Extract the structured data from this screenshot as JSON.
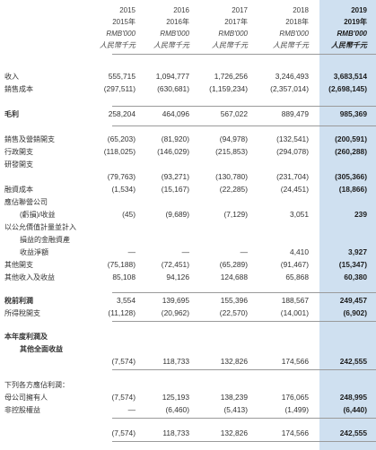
{
  "header": {
    "years": [
      "2015",
      "2016",
      "2017",
      "2018",
      "2019"
    ],
    "year_labels": [
      "2015年",
      "2016年",
      "2017年",
      "2018年",
      "2019年"
    ],
    "units": [
      "RMB'000",
      "RMB'000",
      "RMB'000",
      "RMB'000",
      "RMB'000"
    ],
    "units_zh": [
      "人民幣千元",
      "人民幣千元",
      "人民幣千元",
      "人民幣千元",
      "人民幣千元"
    ]
  },
  "rows": [
    {
      "label": "收入",
      "values": [
        "555,715",
        "1,094,777",
        "1,726,256",
        "3,246,493",
        "3,683,514"
      ]
    },
    {
      "label": "銷售成本",
      "values": [
        "(297,511)",
        "(630,681)",
        "(1,159,234)",
        "(2,357,014)",
        "(2,698,145)"
      ]
    },
    {
      "label": "毛利",
      "bold": true,
      "values": [
        "258,204",
        "464,096",
        "567,022",
        "889,479",
        "985,369"
      ]
    },
    {
      "label": "銷售及營銷開支",
      "values": [
        "(65,203)",
        "(81,920)",
        "(94,978)",
        "(132,541)",
        "(200,591)"
      ]
    },
    {
      "label": "行政開支",
      "values": [
        "(118,025)",
        "(146,029)",
        "(215,853)",
        "(294,078)",
        "(260,288)"
      ]
    },
    {
      "label": "研發開支",
      "values": [
        "",
        "",
        "",
        "",
        ""
      ]
    },
    {
      "label": "",
      "values": [
        "(79,763)",
        "(93,271)",
        "(130,780)",
        "(231,704)",
        "(305,366)"
      ]
    },
    {
      "label": "融資成本",
      "values": [
        "(1,534)",
        "(15,167)",
        "(22,285)",
        "(24,451)",
        "(18,866)"
      ]
    },
    {
      "label": "應佔聯營公司",
      "values": [
        "",
        "",
        "",
        "",
        ""
      ]
    },
    {
      "label": "(虧損)/收益",
      "indent": true,
      "values": [
        "(45)",
        "(9,689)",
        "(7,129)",
        "3,051",
        "239"
      ]
    },
    {
      "label": "以公允價值計量並計入",
      "values": [
        "",
        "",
        "",
        "",
        ""
      ]
    },
    {
      "label": "損益的金融資產",
      "indent": true,
      "values": [
        "",
        "",
        "",
        "",
        ""
      ]
    },
    {
      "label": "收益淨額",
      "indent": true,
      "values": [
        "—",
        "—",
        "—",
        "4,410",
        "3,927"
      ]
    },
    {
      "label": "其他開支",
      "values": [
        "(75,188)",
        "(72,451)",
        "(65,289)",
        "(91,467)",
        "(15,347)"
      ]
    },
    {
      "label": "其他收入及收益",
      "values": [
        "85,108",
        "94,126",
        "124,688",
        "65,868",
        "60,380"
      ]
    },
    {
      "label": "稅前利潤",
      "bold": true,
      "values": [
        "3,554",
        "139,695",
        "155,396",
        "188,567",
        "249,457"
      ]
    },
    {
      "label": "所得稅開支",
      "values": [
        "(11,128)",
        "(20,962)",
        "(22,570)",
        "(14,001)",
        "(6,902)"
      ]
    },
    {
      "label": "本年度利潤及",
      "bold": true,
      "values": [
        "",
        "",
        "",
        "",
        ""
      ]
    },
    {
      "label": "其他全面收益",
      "bold": true,
      "indent": true,
      "values": [
        "",
        "",
        "",
        "",
        ""
      ]
    },
    {
      "label": "",
      "values": [
        "(7,574)",
        "118,733",
        "132,826",
        "174,566",
        "242,555"
      ]
    },
    {
      "label": "下列各方應佔利潤：",
      "values": [
        "",
        "",
        "",
        "",
        ""
      ]
    },
    {
      "label": "母公司擁有人",
      "values": [
        "(7,574)",
        "125,193",
        "138,239",
        "176,065",
        "248,995"
      ]
    },
    {
      "label": "非控股權益",
      "values": [
        "—",
        "(6,460)",
        "(5,413)",
        "(1,499)",
        "(6,440)"
      ]
    },
    {
      "label": "",
      "values": [
        "(7,574)",
        "118,733",
        "132,826",
        "174,566",
        "242,555"
      ]
    }
  ]
}
